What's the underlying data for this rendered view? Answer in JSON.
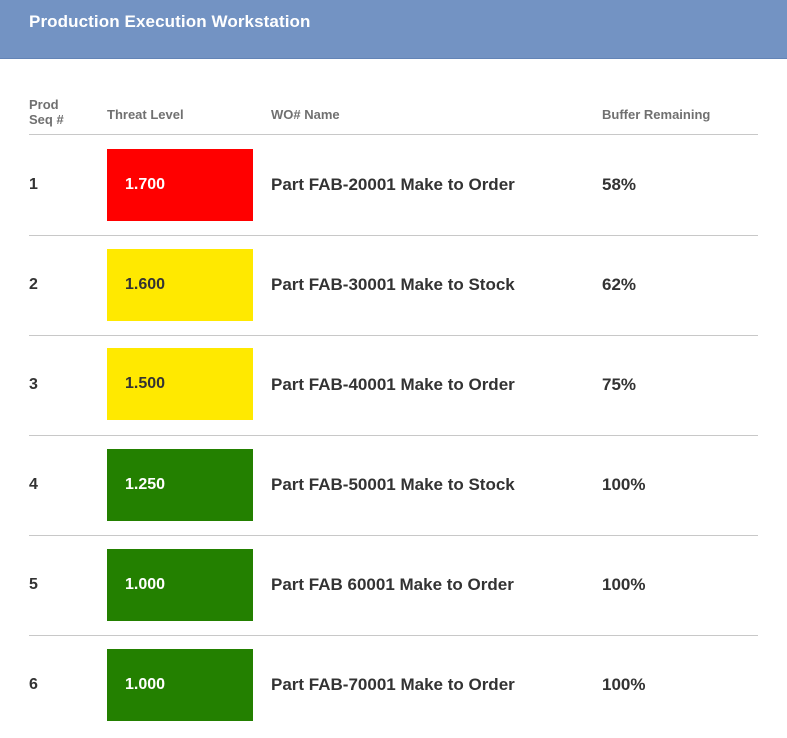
{
  "app": {
    "title": "Production Execution Workstation"
  },
  "columns": {
    "seq_line1": "Prod",
    "seq_line2": "Seq #",
    "threat": "Threat Level",
    "wo": "WO# Name",
    "buffer": "Buffer Remaining"
  },
  "status_colors": {
    "red": "#ff0000",
    "yellow": "#ffe900",
    "green": "#238000"
  },
  "rows": [
    {
      "seq": "1",
      "threat": "1.700",
      "status": "red",
      "wo": "Part FAB-20001 Make to Order",
      "buffer": "58%"
    },
    {
      "seq": "2",
      "threat": "1.600",
      "status": "yellow",
      "wo": "Part FAB-30001 Make to Stock",
      "buffer": "62%"
    },
    {
      "seq": "3",
      "threat": "1.500",
      "status": "yellow",
      "wo": "Part FAB-40001 Make to Order",
      "buffer": "75%"
    },
    {
      "seq": "4",
      "threat": "1.250",
      "status": "green",
      "wo": "Part FAB-50001 Make to Stock",
      "buffer": "100%"
    },
    {
      "seq": "5",
      "threat": "1.000",
      "status": "green",
      "wo": "Part FAB 60001 Make to Order",
      "buffer": "100%"
    },
    {
      "seq": "6",
      "threat": "1.000",
      "status": "green",
      "wo": "Part FAB-70001 Make to Order",
      "buffer": "100%"
    }
  ]
}
